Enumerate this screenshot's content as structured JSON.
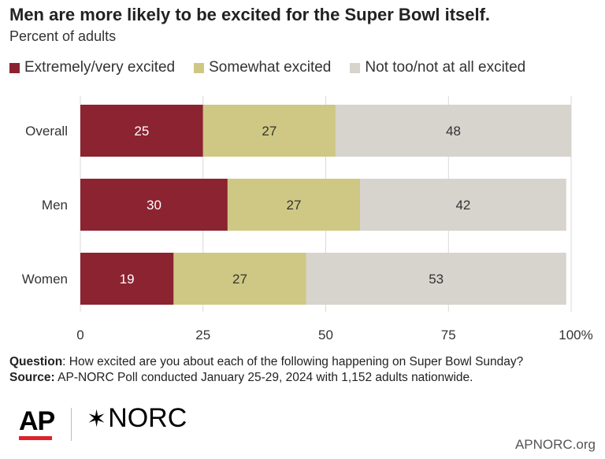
{
  "title": "Men are more likely to be excited for the Super Bowl itself.",
  "subtitle": "Percent of adults",
  "legend": [
    {
      "label": "Extremely/very excited",
      "color": "#8b2331"
    },
    {
      "label": "Somewhat excited",
      "color": "#cfc884"
    },
    {
      "label": "Not too/not at all excited",
      "color": "#d7d3cd"
    }
  ],
  "chart_data": {
    "type": "bar",
    "orientation": "horizontal",
    "stacked": true,
    "categories": [
      "Overall",
      "Men",
      "Women"
    ],
    "series": [
      {
        "name": "Extremely/very excited",
        "values": [
          25,
          30,
          19
        ],
        "color": "#8b2331",
        "label_color": "#ffffff"
      },
      {
        "name": "Somewhat excited",
        "values": [
          27,
          27,
          27
        ],
        "color": "#cfc884",
        "label_color": "#333333"
      },
      {
        "name": "Not too/not at all excited",
        "values": [
          48,
          42,
          53
        ],
        "color": "#d7d3cd",
        "label_color": "#333333"
      }
    ],
    "xlim": [
      0,
      100
    ],
    "xticks": [
      "0",
      "25",
      "50",
      "75",
      "100%"
    ],
    "xtick_values": [
      0,
      25,
      50,
      75,
      100
    ],
    "grid": true,
    "legend_position": "top"
  },
  "footnote": {
    "question_label": "Question",
    "question_text": ": How excited are you about each of the following happening on Super Bowl Sunday?",
    "source_label": "Source:",
    "source_text": " AP-NORC Poll conducted January 25-29, 2024 with 1,152 adults nationwide."
  },
  "logos": {
    "ap": "AP",
    "norc": "NORC",
    "norc_star": "✶"
  },
  "site": "APNORC.org"
}
